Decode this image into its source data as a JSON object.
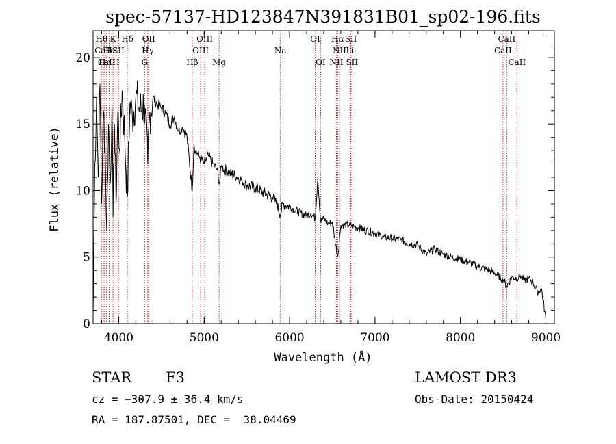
{
  "chart_data": {
    "type": "line",
    "title": "spec-57137-HD123847N391831B01_sp02-196.fits",
    "xlabel": "Wavelength (Å)",
    "ylabel": "Flux (relative)",
    "xlim": [
      3700,
      9100
    ],
    "ylim": [
      0,
      22
    ],
    "xticks": [
      4000,
      5000,
      6000,
      7000,
      8000,
      9000
    ],
    "yticks": [
      0,
      5,
      10,
      15,
      20
    ],
    "x_tick_labels": [
      "4000",
      "5000",
      "6000",
      "7000",
      "8000",
      "9000"
    ],
    "y_tick_labels": [
      "0",
      "5",
      "10",
      "15",
      "20"
    ],
    "grid": false,
    "series": [
      {
        "name": "flux",
        "x": [
          3700,
          3720,
          3740,
          3760,
          3780,
          3800,
          3820,
          3840,
          3860,
          3880,
          3900,
          3920,
          3933,
          3950,
          3968,
          3990,
          4010,
          4040,
          4070,
          4101,
          4130,
          4160,
          4200,
          4250,
          4300,
          4340,
          4360,
          4400,
          4450,
          4500,
          4550,
          4600,
          4650,
          4700,
          4750,
          4800,
          4861,
          4880,
          4900,
          4950,
          5000,
          5050,
          5100,
          5150,
          5180,
          5200,
          5300,
          5400,
          5500,
          5600,
          5700,
          5800,
          5850,
          5893,
          5920,
          6000,
          6100,
          6200,
          6250,
          6300,
          6330,
          6363,
          6400,
          6450,
          6500,
          6563,
          6600,
          6700,
          6800,
          6900,
          7000,
          7100,
          7200,
          7300,
          7400,
          7500,
          7600,
          7700,
          7800,
          7900,
          8000,
          8100,
          8200,
          8300,
          8400,
          8500,
          8542,
          8600,
          8662,
          8700,
          8750,
          8800,
          8850,
          8900,
          8950,
          9000
        ],
        "y": [
          0.5,
          12.0,
          17.0,
          11.0,
          18.0,
          9.0,
          16.0,
          13.5,
          7.0,
          15.0,
          10.5,
          16.5,
          8.0,
          15.0,
          9.0,
          16.0,
          13.0,
          17.5,
          14.0,
          9.5,
          16.5,
          15.5,
          17.0,
          16.0,
          16.5,
          12.0,
          15.5,
          17.0,
          16.5,
          16.2,
          15.8,
          15.0,
          15.5,
          14.5,
          14.8,
          14.0,
          10.0,
          13.5,
          13.0,
          12.5,
          12.0,
          12.6,
          12.0,
          11.6,
          10.5,
          11.8,
          11.3,
          11.0,
          10.4,
          10.2,
          9.8,
          9.5,
          9.0,
          8.2,
          9.0,
          8.8,
          8.4,
          8.1,
          8.3,
          7.9,
          11.0,
          7.7,
          7.9,
          7.5,
          7.6,
          5.0,
          7.4,
          7.4,
          7.2,
          7.0,
          6.8,
          6.5,
          6.4,
          6.3,
          6.0,
          5.9,
          5.2,
          5.6,
          5.2,
          5.0,
          4.8,
          4.6,
          4.3,
          4.1,
          3.8,
          3.3,
          2.8,
          3.5,
          3.4,
          3.6,
          3.2,
          3.4,
          3.1,
          2.4,
          2.6,
          0.3
        ]
      }
    ],
    "annotations": [
      {
        "label": "Hθ",
        "x": 3798,
        "row": 1
      },
      {
        "label": "CaII",
        "x": 3820,
        "row": 2
      },
      {
        "label": "CaII",
        "x": 3858,
        "row": 3
      },
      {
        "label": "Hη",
        "x": 3835,
        "row": 3
      },
      {
        "label": "K",
        "x": 3933,
        "row": 1
      },
      {
        "label": "He",
        "x": 3889,
        "row": 2
      },
      {
        "label": "H",
        "x": 3968,
        "row": 3
      },
      {
        "label": "SII",
        "x": 3997,
        "row": 2
      },
      {
        "label": "Hδ",
        "x": 4101,
        "row": 1
      },
      {
        "label": "OII",
        "x": 4351,
        "row": 1
      },
      {
        "label": "Hγ",
        "x": 4340,
        "row": 2
      },
      {
        "label": "G",
        "x": 4304,
        "row": 3
      },
      {
        "label": "OIII",
        "x": 5007,
        "row": 1
      },
      {
        "label": "OIII",
        "x": 4959,
        "row": 2
      },
      {
        "label": "Hβ",
        "x": 4861,
        "row": 3
      },
      {
        "label": "Mg",
        "x": 5175,
        "row": 3
      },
      {
        "label": "Na",
        "x": 5893,
        "row": 2
      },
      {
        "label": "OI",
        "x": 6300,
        "row": 1
      },
      {
        "label": "OI",
        "x": 6363,
        "row": 3
      },
      {
        "label": "Hα",
        "x": 6563,
        "row": 1
      },
      {
        "label": "SII",
        "x": 6717,
        "row": 1
      },
      {
        "label": "NII",
        "x": 6584,
        "row": 2
      },
      {
        "label": "Li",
        "x": 6708,
        "row": 2
      },
      {
        "label": "NII",
        "x": 6548,
        "row": 3
      },
      {
        "label": "SII",
        "x": 6731,
        "row": 3
      },
      {
        "label": "CaII",
        "x": 8542,
        "row": 1
      },
      {
        "label": "CaII",
        "x": 8498,
        "row": 2
      },
      {
        "label": "CaII",
        "x": 8662,
        "row": 3
      }
    ],
    "line_marker_color": "#b22222"
  },
  "info": {
    "object_class": "STAR",
    "subclass": "F3",
    "survey": "LAMOST DR3",
    "cz": "cz = −307.9 ± 36.4 km/s",
    "obs_date": "Obs-Date: 20150424",
    "coords": "RA = 187.87501, DEC =  38.04469"
  }
}
